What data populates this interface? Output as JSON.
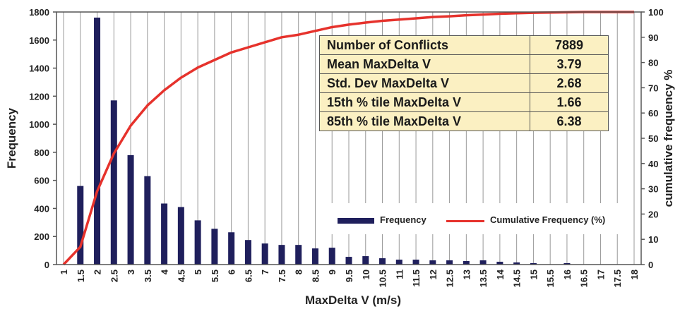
{
  "chart_data": {
    "type": "bar",
    "categories": [
      "1",
      "1.5",
      "2",
      "2.5",
      "3",
      "3.5",
      "4",
      "4.5",
      "5",
      "5.5",
      "6",
      "6.5",
      "7",
      "7.5",
      "8",
      "8.5",
      "9",
      "9.5",
      "10",
      "10.5",
      "11",
      "11.5",
      "12",
      "12.5",
      "13",
      "13.5",
      "14",
      "14.5",
      "15",
      "15.5",
      "16",
      "16.5",
      "17",
      "17.5",
      "18"
    ],
    "series": [
      {
        "name": "Frequency",
        "type": "bar",
        "axis": "left",
        "color": "#1f1f5c",
        "values": [
          0,
          560,
          1760,
          1170,
          780,
          630,
          435,
          410,
          315,
          255,
          230,
          175,
          150,
          140,
          140,
          115,
          120,
          55,
          60,
          45,
          35,
          35,
          30,
          30,
          25,
          30,
          20,
          15,
          10,
          0,
          10,
          0,
          0,
          0,
          0
        ]
      },
      {
        "name": "Cumulative Frequency (%)",
        "type": "line",
        "axis": "right",
        "color": "#e6322c",
        "values": [
          0,
          7,
          29,
          44,
          55,
          63,
          69,
          74,
          78,
          81,
          84,
          86,
          88,
          90,
          91,
          92.5,
          94,
          95,
          95.8,
          96.5,
          97,
          97.5,
          98,
          98.3,
          98.7,
          99,
          99.3,
          99.5,
          99.7,
          99.8,
          99.9,
          100,
          100,
          100,
          100
        ]
      }
    ],
    "xlabel": "MaxDelta V (m/s)",
    "ylabel": "Frequency",
    "y2label": "cumulative frequency %",
    "ylim": [
      0,
      1800
    ],
    "y2lim": [
      0,
      100
    ],
    "yticks": [
      0,
      200,
      400,
      600,
      800,
      1000,
      1200,
      1400,
      1600,
      1800
    ],
    "y2ticks": [
      0,
      10,
      20,
      30,
      40,
      50,
      60,
      70,
      80,
      90,
      100
    ],
    "grid": "vertical",
    "legend_position": "bottom-right"
  },
  "stats_table": [
    {
      "label": "Number of Conflicts",
      "value": "7889"
    },
    {
      "label": "Mean MaxDelta V",
      "value": "3.79"
    },
    {
      "label": "Std. Dev MaxDelta V",
      "value": "2.68"
    },
    {
      "label": "15th % tile MaxDelta V",
      "value": "1.66"
    },
    {
      "label": "85th % tile MaxDelta V",
      "value": "6.38"
    }
  ],
  "legend": {
    "bar_label": "Frequency",
    "line_label": "Cumulative Frequency (%)"
  }
}
